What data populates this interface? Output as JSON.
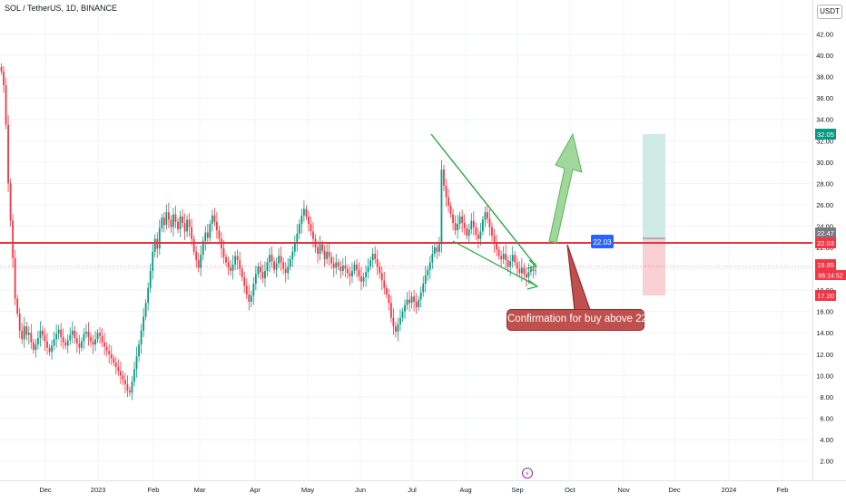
{
  "header": {
    "symbol_title": "SOL / TetherUS, 1D, BINANCE",
    "currency_label": "USDT"
  },
  "annotation": {
    "callout_text": "Confirmation for buy above 22",
    "level_label": "22.03"
  },
  "price_axis": {
    "tick_labels": [
      "2.00",
      "4.00",
      "6.00",
      "8.00",
      "10.00",
      "12.00",
      "14.00",
      "16.00",
      "18.00",
      "20.00",
      "22.00",
      "24.00",
      "26.00",
      "28.00",
      "30.00",
      "32.00",
      "34.00",
      "36.00",
      "38.00",
      "40.00",
      "42.00"
    ],
    "badges": [
      {
        "name": "target-price-badge",
        "text": "32.05",
        "value": 32.05,
        "color": "#089981"
      },
      {
        "name": "entry-price-badge",
        "text": "22.47",
        "value": 22.47,
        "color": "#787b86"
      },
      {
        "name": "level-price-badge",
        "text": "22.03",
        "value": 22.03,
        "color": "#f23645"
      },
      {
        "name": "current-price-badge",
        "text": "19.85",
        "value": 19.85,
        "color": "#f23645"
      },
      {
        "name": "stop-price-badge",
        "text": "17.20",
        "value": 17.2,
        "color": "#f23645"
      }
    ],
    "countdown": "06:14:52"
  },
  "time_axis": {
    "labels": [
      "Dec",
      "2023",
      "Feb",
      "Mar",
      "Apr",
      "May",
      "Jun",
      "Jul",
      "Aug",
      "Sep",
      "Oct",
      "Nov",
      "Dec",
      "2024",
      "Feb"
    ]
  },
  "colors": {
    "up": "#089981",
    "down": "#f23645",
    "level_line": "#e5343d",
    "wedge": "#22ab43",
    "arrow_fill": "#8fd18a",
    "target_zone": "#cfeae3",
    "stop_zone": "#f9d1d4",
    "label_blue": "#2962ff"
  },
  "chart_data": {
    "type": "candlestick",
    "symbol": "SOL / TetherUS",
    "interval": "1D",
    "exchange": "BINANCE",
    "ylim": [
      0.5,
      43.5
    ],
    "time_labels": [
      "Dec",
      "2023",
      "Feb",
      "Mar",
      "Apr",
      "May",
      "Jun",
      "Jul",
      "Aug",
      "Sep",
      "Oct",
      "Nov",
      "Dec",
      "2024",
      "Feb"
    ],
    "closes_approx": [
      38.5,
      37.2,
      33.5,
      28.0,
      24.5,
      21.0,
      17.2,
      15.8,
      14.2,
      13.4,
      14.6,
      13.8,
      14.0,
      13.1,
      12.4,
      12.9,
      13.5,
      14.2,
      13.8,
      13.2,
      12.6,
      12.2,
      12.8,
      13.4,
      13.9,
      14.3,
      13.6,
      13.1,
      12.8,
      13.3,
      13.8,
      14.2,
      13.5,
      13.0,
      12.6,
      13.2,
      13.9,
      14.1,
      13.6,
      13.2,
      12.9,
      13.4,
      14.0,
      13.7,
      13.1,
      12.7,
      12.3,
      12.0,
      11.6,
      11.2,
      10.8,
      10.4,
      10.0,
      9.6,
      9.2,
      8.6,
      8.4,
      9.4,
      10.6,
      11.8,
      12.9,
      14.2,
      15.5,
      16.8,
      18.2,
      19.8,
      21.6,
      22.8,
      21.9,
      23.8,
      24.8,
      24.1,
      25.3,
      24.6,
      23.9,
      25.1,
      24.4,
      23.7,
      24.9,
      24.3,
      23.5,
      24.6,
      23.9,
      22.8,
      21.6,
      20.8,
      20.1,
      21.3,
      22.6,
      23.4,
      22.9,
      24.2,
      25.0,
      24.4,
      23.6,
      22.8,
      21.9,
      21.1,
      20.6,
      20.1,
      19.8,
      20.4,
      21.2,
      20.8,
      20.0,
      19.2,
      18.4,
      17.6,
      16.9,
      17.5,
      18.6,
      19.5,
      20.2,
      19.7,
      19.1,
      19.8,
      20.6,
      21.3,
      20.7,
      19.9,
      20.5,
      21.2,
      20.6,
      20.0,
      19.6,
      20.2,
      20.9,
      21.6,
      22.4,
      23.3,
      24.2,
      25.0,
      25.6,
      24.9,
      24.2,
      23.5,
      22.8,
      22.0,
      21.4,
      22.3,
      21.7,
      20.9,
      21.6,
      21.1,
      20.5,
      20.1,
      20.6,
      20.2,
      19.8,
      20.3,
      20.0,
      19.6,
      19.3,
      19.8,
      20.4,
      19.9,
      19.3,
      18.8,
      19.2,
      19.7,
      20.2,
      20.8,
      21.4,
      20.9,
      20.2,
      19.6,
      18.9,
      18.2,
      17.6,
      16.8,
      15.4,
      14.6,
      14.1,
      14.8,
      15.4,
      16.0,
      16.6,
      17.1,
      16.8,
      17.4,
      16.9,
      16.4,
      17.1,
      17.8,
      18.6,
      19.4,
      19.9,
      20.6,
      21.4,
      22.0,
      21.6,
      22.3,
      29.3,
      27.8,
      26.7,
      25.9,
      25.1,
      24.3,
      23.6,
      24.2,
      24.9,
      24.3,
      23.8,
      23.1,
      23.7,
      24.5,
      23.9,
      23.2,
      22.8,
      23.5,
      24.6,
      25.3,
      24.7,
      23.9,
      23.1,
      22.4,
      21.8,
      21.2,
      20.9,
      21.4,
      20.8,
      20.2,
      20.7,
      21.3,
      20.6,
      20.0,
      19.6,
      20.1,
      19.5,
      19.2,
      19.7,
      20.0,
      19.8,
      19.85
    ]
  }
}
